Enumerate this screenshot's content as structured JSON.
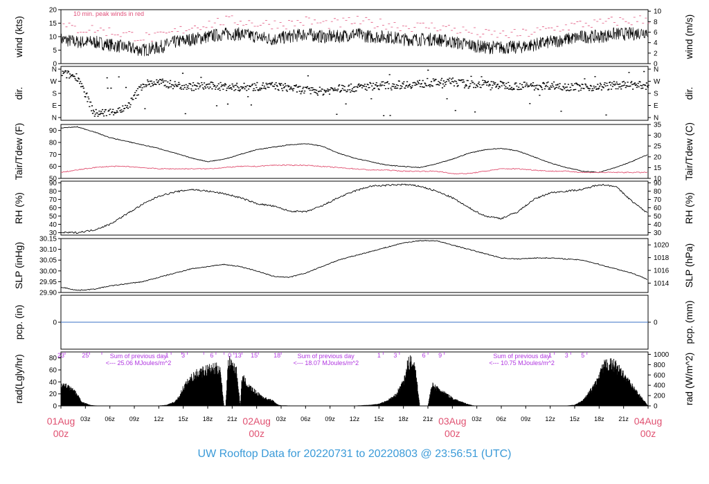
{
  "page": {
    "footer_title": "UW Rooftop Data for 20220731  to  20220803 @ 23:56:51  (UTC)"
  },
  "colors": {
    "trace": "#000000",
    "peak": "#e0507a",
    "dewpoint": "#e05070",
    "precip": "#3a6fc4",
    "annotation": "#b035e0",
    "date_label": "#e05070",
    "footer": "#3a9ad8"
  },
  "time_axis": {
    "hour_labels": [
      "03z",
      "06z",
      "09z",
      "12z",
      "15z",
      "18z",
      "21z",
      "03z",
      "06z",
      "09z",
      "12z",
      "15z",
      "18z",
      "21z",
      "03z",
      "06z",
      "09z",
      "12z",
      "15z",
      "18z",
      "21z"
    ],
    "hour_positions": [
      3,
      6,
      9,
      12,
      15,
      18,
      21,
      27,
      30,
      33,
      36,
      39,
      42,
      45,
      51,
      54,
      57,
      60,
      63,
      66,
      69
    ],
    "date_labels": [
      {
        "date": "01Aug",
        "zone": "00z",
        "hour": 0
      },
      {
        "date": "02Aug",
        "zone": "00z",
        "hour": 24
      },
      {
        "date": "03Aug",
        "zone": "00z",
        "hour": 48
      },
      {
        "date": "04Aug",
        "zone": "00z",
        "hour": 72
      }
    ],
    "range_hours": [
      0,
      72
    ]
  },
  "chart_data": [
    {
      "id": "wind",
      "type": "line",
      "ylabel": "wind (kts)",
      "ylabel_right": "wind (m/s)",
      "ylim": [
        0,
        20
      ],
      "yticks": [
        0,
        5,
        10,
        15,
        20
      ],
      "right_ticks": [
        0,
        2,
        4,
        6,
        8,
        10
      ],
      "right_factor": 1.944,
      "annotation": "10 min. peak winds in red",
      "x_hours": [
        0,
        2,
        4,
        6,
        8,
        10,
        12,
        14,
        16,
        18,
        20,
        22,
        24,
        26,
        28,
        30,
        32,
        34,
        36,
        38,
        40,
        42,
        44,
        46,
        48,
        50,
        52,
        54,
        56,
        58,
        60,
        62,
        64,
        66,
        68,
        70,
        72
      ],
      "series": [
        {
          "values": [
            9,
            8,
            8,
            7,
            6,
            5,
            6,
            8,
            9,
            10,
            11,
            11,
            10,
            9,
            10,
            11,
            10,
            10,
            11,
            10,
            10,
            9,
            9,
            9,
            8,
            7,
            6,
            6,
            6,
            7,
            8,
            9,
            10,
            10,
            11,
            11,
            12
          ]
        },
        {
          "values": [
            13,
            12,
            12,
            11,
            10,
            9,
            9,
            11,
            13,
            14,
            15,
            15,
            14,
            14,
            14,
            15,
            14,
            14,
            15,
            14,
            14,
            13,
            13,
            13,
            12,
            11,
            10,
            10,
            10,
            11,
            12,
            13,
            14,
            14,
            15,
            15,
            16
          ]
        }
      ]
    },
    {
      "id": "dir",
      "type": "scatter",
      "ylabel": "dir.",
      "ylabel_right": "dir.",
      "ylim": [
        0,
        360
      ],
      "ytick_labels": [
        "N",
        "E",
        "S",
        "W",
        "N"
      ],
      "x_hours": [
        0,
        2,
        4,
        6,
        8,
        10,
        12,
        14,
        16,
        18,
        20,
        22,
        24,
        26,
        28,
        30,
        32,
        34,
        36,
        38,
        40,
        42,
        44,
        46,
        48,
        50,
        52,
        54,
        56,
        58,
        60,
        62,
        64,
        66,
        68,
        70,
        72
      ],
      "values": [
        330,
        300,
        30,
        40,
        70,
        250,
        260,
        240,
        230,
        235,
        230,
        225,
        230,
        235,
        220,
        200,
        195,
        215,
        220,
        235,
        240,
        245,
        250,
        260,
        265,
        245,
        250,
        240,
        235,
        235,
        240,
        230,
        225,
        230,
        240,
        240,
        235
      ]
    },
    {
      "id": "temp",
      "type": "line",
      "ylabel": "Tair/Tdew (F)",
      "ylabel_right": "Tair/Tdew (C)",
      "ylim": [
        50,
        95
      ],
      "yticks": [
        50,
        60,
        70,
        80,
        90
      ],
      "right_ticks": [
        10,
        15,
        20,
        25,
        30,
        35
      ],
      "x_hours": [
        0,
        2,
        4,
        6,
        8,
        10,
        12,
        14,
        16,
        18,
        20,
        22,
        24,
        26,
        28,
        30,
        32,
        34,
        36,
        38,
        40,
        42,
        44,
        46,
        48,
        50,
        52,
        54,
        56,
        58,
        60,
        62,
        64,
        66,
        68,
        70,
        72
      ],
      "series": [
        {
          "values": [
            92,
            93,
            89,
            84,
            81,
            78,
            75,
            71,
            67,
            64,
            66,
            70,
            74,
            76,
            78,
            79,
            77,
            71,
            67,
            64,
            61,
            60,
            59,
            62,
            66,
            71,
            74,
            75,
            73,
            68,
            63,
            59,
            56,
            55,
            59,
            64,
            70
          ]
        },
        {
          "values": [
            55,
            57,
            59,
            60,
            60,
            59,
            58,
            58,
            58,
            58,
            59,
            60,
            60,
            61,
            61,
            61,
            60,
            59,
            58,
            57,
            57,
            56,
            56,
            56,
            54,
            54,
            56,
            58,
            58,
            57,
            56,
            56,
            55,
            55,
            55,
            55,
            55
          ]
        }
      ]
    },
    {
      "id": "rh",
      "type": "line",
      "ylabel": "RH (%)",
      "ylabel_right": "RH (%)",
      "ylim": [
        27,
        92
      ],
      "yticks": [
        30,
        40,
        50,
        60,
        70,
        80,
        90
      ],
      "right_ticks": [
        30,
        40,
        50,
        60,
        70,
        80,
        90
      ],
      "x_hours": [
        0,
        2,
        4,
        6,
        8,
        10,
        12,
        14,
        16,
        18,
        20,
        22,
        24,
        26,
        28,
        30,
        32,
        34,
        36,
        38,
        40,
        42,
        44,
        46,
        48,
        50,
        52,
        54,
        56,
        58,
        60,
        62,
        64,
        66,
        68,
        70,
        72
      ],
      "values": [
        30,
        30,
        33,
        40,
        52,
        64,
        74,
        79,
        82,
        80,
        77,
        72,
        65,
        62,
        56,
        55,
        62,
        72,
        80,
        86,
        87,
        88,
        86,
        80,
        72,
        60,
        50,
        47,
        55,
        70,
        78,
        80,
        82,
        88,
        86,
        68,
        53
      ]
    },
    {
      "id": "slp",
      "type": "line",
      "ylabel": "SLP (inHg)",
      "ylabel_right": "SLP (hPa)",
      "ylim": [
        29.9,
        30.15
      ],
      "yticks": [
        29.9,
        29.95,
        30.0,
        30.05,
        30.1,
        30.15
      ],
      "right_ticks": [
        1014,
        1016,
        1018,
        1020
      ],
      "right_factor": 33.8639,
      "x_hours": [
        0,
        2,
        4,
        6,
        8,
        10,
        12,
        14,
        16,
        18,
        20,
        22,
        24,
        26,
        28,
        30,
        32,
        34,
        36,
        38,
        40,
        42,
        44,
        46,
        48,
        50,
        52,
        54,
        56,
        58,
        60,
        62,
        64,
        66,
        68,
        70,
        72
      ],
      "values": [
        29.925,
        29.91,
        29.915,
        29.93,
        29.94,
        29.95,
        29.97,
        29.99,
        30.01,
        30.02,
        30.03,
        30.02,
        30.0,
        29.975,
        29.97,
        29.99,
        30.02,
        30.05,
        30.07,
        30.09,
        30.11,
        30.13,
        30.14,
        30.14,
        30.12,
        30.1,
        30.08,
        30.06,
        30.055,
        30.06,
        30.06,
        30.055,
        30.05,
        30.03,
        30.01,
        29.99,
        29.96
      ]
    },
    {
      "id": "pcp",
      "type": "line",
      "ylabel": "pcp. (in)",
      "ylabel_right": "pcp. (mm)",
      "ylim": [
        -1,
        1
      ],
      "yticks": [
        0
      ],
      "right_ticks": [
        0
      ],
      "x_hours": [
        0,
        72
      ],
      "values": [
        0,
        0
      ]
    },
    {
      "id": "rad",
      "type": "area",
      "ylabel": "rad(Lgly/hr)",
      "ylabel_right": "rad (W/m^2)",
      "ylim": [
        0,
        90
      ],
      "yticks": [
        0,
        20,
        40,
        60,
        80
      ],
      "right_ticks": [
        0,
        200,
        400,
        600,
        800,
        1000
      ],
      "right_factor": 0.086,
      "x_hours": [
        0,
        1,
        2,
        2.3,
        2.5,
        3.5,
        4,
        5,
        8,
        10,
        12,
        13,
        14,
        14.5,
        15,
        16,
        17,
        18,
        19,
        19.5,
        20,
        20.2,
        20.5,
        21,
        21.5,
        22,
        22.2,
        22.5,
        23,
        24,
        25,
        26,
        26.5,
        27,
        30,
        34,
        36,
        38,
        39,
        40,
        41,
        42,
        42.3,
        42.5,
        42.8,
        43,
        43.5,
        44,
        44.5,
        45,
        45.5,
        46,
        47,
        48,
        49,
        50,
        50.5,
        51,
        52,
        54,
        60,
        62,
        63,
        64,
        65,
        66,
        66.5,
        67,
        67.5,
        68,
        72
      ],
      "values": [
        42,
        35,
        24,
        15,
        8,
        2,
        1,
        0,
        0,
        0,
        0.5,
        2,
        8,
        18,
        35,
        55,
        65,
        70,
        72,
        74,
        0,
        0,
        85,
        80,
        70,
        0,
        55,
        50,
        38,
        25,
        15,
        10,
        3,
        1,
        0,
        0,
        0.5,
        2,
        4,
        10,
        20,
        45,
        60,
        80,
        85,
        82,
        70,
        0,
        0,
        0,
        40,
        35,
        25,
        15,
        8,
        3,
        1,
        0,
        0,
        0,
        0,
        0.5,
        2,
        10,
        30,
        55,
        75,
        82,
        80,
        78,
        0
      ],
      "cumulative_hours": [
        0,
        3,
        4.5,
        13,
        14.3,
        15,
        17,
        18.5,
        19.5,
        20.7,
        21.7,
        23.7,
        26.5,
        39,
        41,
        44.5,
        46.5,
        60,
        62,
        64
      ],
      "cumulative_labels": [
        "23",
        "25",
        "",
        "1",
        "",
        "3",
        "",
        "6",
        "",
        "0",
        "13",
        "15",
        "18",
        "1",
        "3",
        "6",
        "9",
        "1",
        "3",
        "5"
      ],
      "annotations": [
        {
          "line1": "Sum of previous day",
          "line2": "<--- 25.06 MJoules/m^2",
          "hour": 5.5
        },
        {
          "line1": "Sum of previous day",
          "line2": "<--- 18.07 MJoules/m^2",
          "hour": 28.5
        },
        {
          "line1": "Sum of previous day",
          "line2": "<--- 10.75 MJoules/m^2",
          "hour": 52.5
        }
      ]
    }
  ]
}
